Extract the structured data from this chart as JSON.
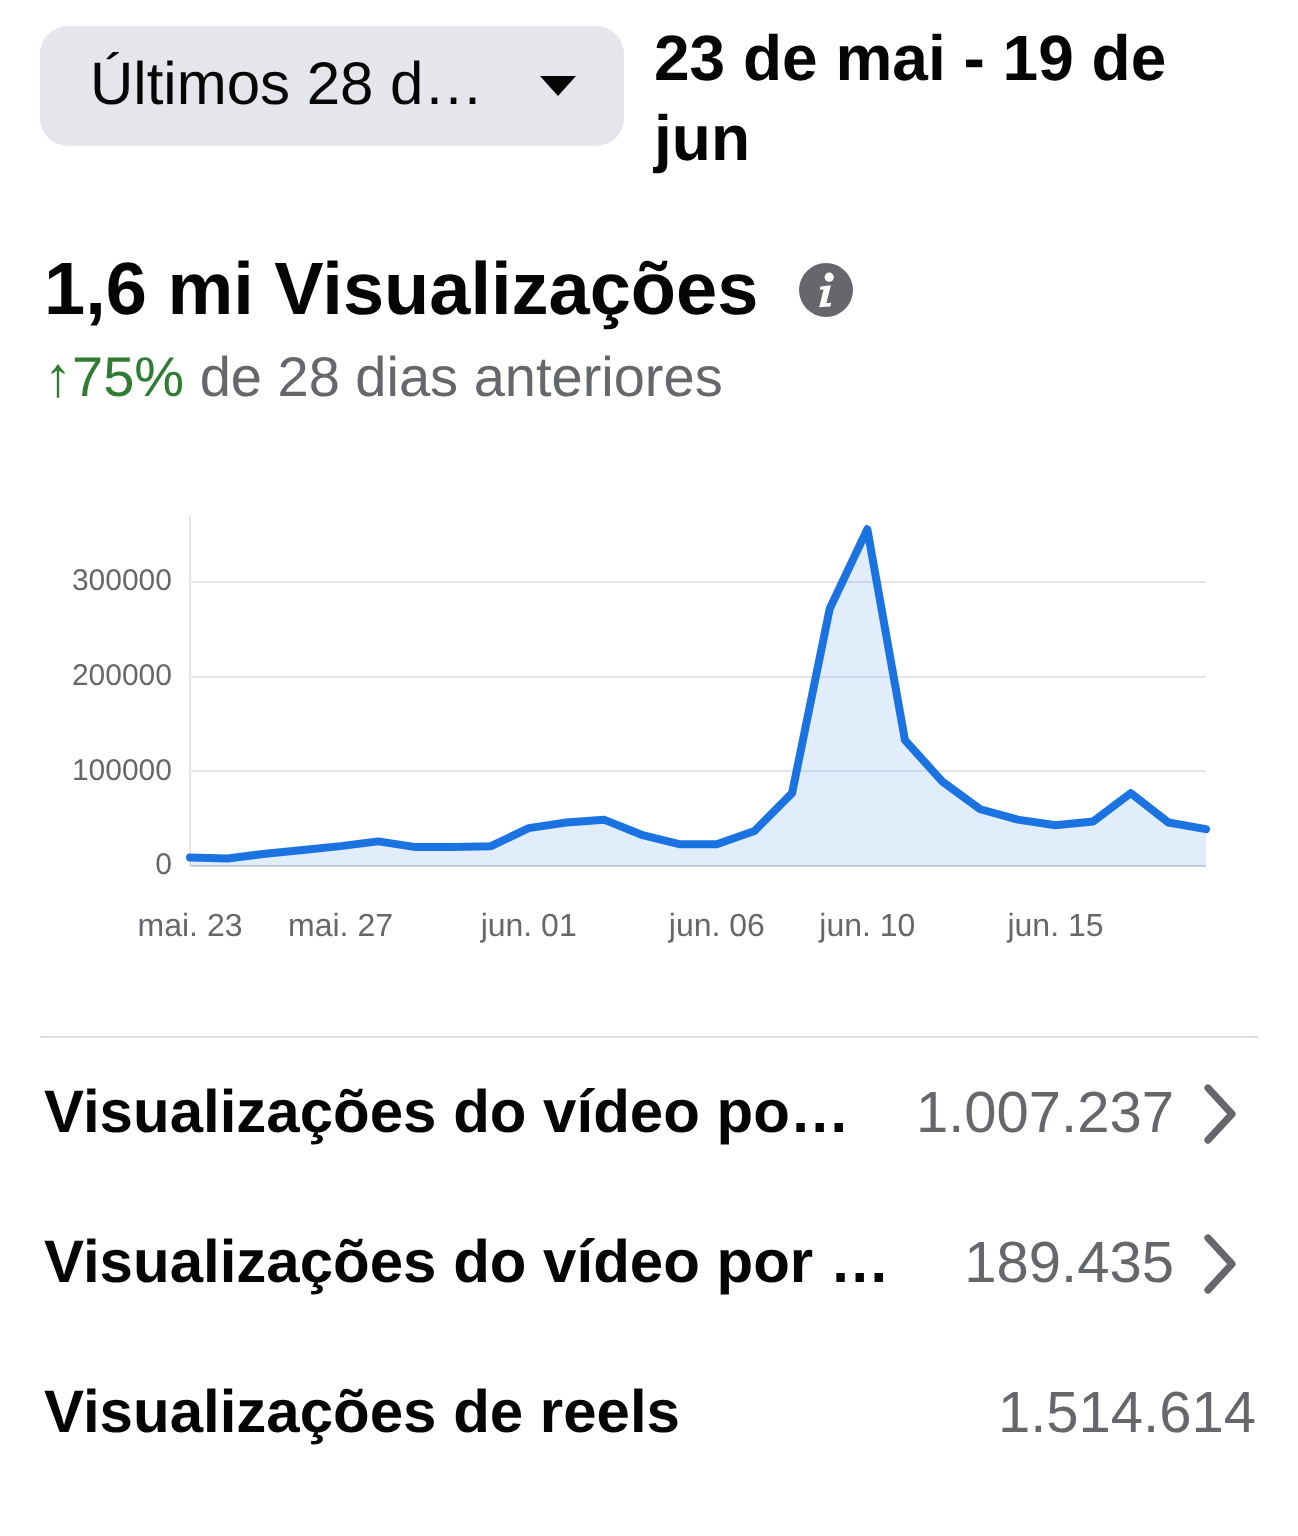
{
  "chart_data": [
    {
      "type": "area",
      "title": "1,6 mi Visualizações",
      "subtitle": "↑75% de 28 dias anteriores",
      "annotations": [
        "Últimos 28 d…",
        "23 de mai - 19 de jun"
      ],
      "categories": [
        "mai. 23",
        null,
        null,
        null,
        "mai. 27",
        null,
        null,
        null,
        null,
        "jun. 01",
        null,
        null,
        null,
        null,
        "jun. 06",
        null,
        null,
        null,
        "jun. 10",
        null,
        null,
        null,
        null,
        "jun. 15",
        null,
        null,
        null,
        null
      ],
      "series": [
        {
          "color": "#1a73e0",
          "values": [
            9000,
            8000,
            13000,
            17000,
            21000,
            26000,
            20000,
            20000,
            21000,
            40000,
            46000,
            49000,
            33000,
            23000,
            23000,
            37000,
            77000,
            272000,
            356000,
            133000,
            89000,
            60000,
            49000,
            43000,
            47000,
            77000,
            46000,
            39000
          ]
        }
      ],
      "ylim": [
        0,
        370000
      ],
      "yticks": [
        0,
        100000,
        200000,
        300000
      ],
      "grid": "y",
      "legend": false,
      "marker": "none",
      "line_style": "solid"
    },
    {
      "type": "other",
      "annotations": [
        "Visualizações do vídeo po…",
        "1.007.237",
        "Visualizações do vídeo por …",
        "189.435",
        "Visualizações de reels",
        "1.514.614"
      ]
    }
  ]
}
